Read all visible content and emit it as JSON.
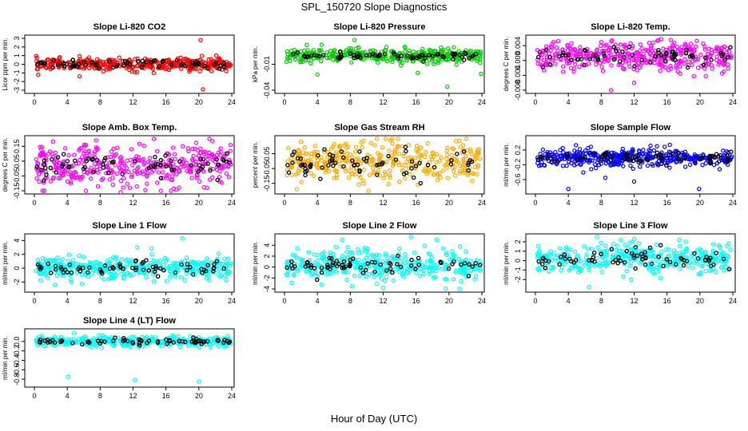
{
  "figure": {
    "title": "SPL_150720  Slope Diagnostics",
    "xlabel": "Hour of Day (UTC)"
  },
  "chart_data": [
    {
      "type": "scatter",
      "title": "Slope Li-820 CO2",
      "ylabel": "Licor ppm per min.",
      "xlim": [
        0,
        24
      ],
      "ylim": [
        -3,
        3
      ],
      "xticks": [
        0,
        4,
        8,
        12,
        16,
        20,
        24
      ],
      "yticks": [
        -3,
        -2,
        -1,
        0,
        1,
        2,
        3
      ],
      "yticklabels": [
        "-3",
        "-2",
        "-1",
        "0",
        "1",
        "2",
        "3"
      ],
      "color": "#ff0000",
      "secondary_color": "#000000",
      "baseline": 0,
      "spread": 0.35,
      "extremes": [
        [
          20.2,
          2.8
        ],
        [
          20.5,
          -2.9
        ],
        [
          5.5,
          -1.4
        ],
        [
          12.2,
          -0.9
        ]
      ]
    },
    {
      "type": "scatter",
      "title": "Slope Li-820 Pressure",
      "ylabel": "kPa per min.",
      "xlim": [
        0,
        24
      ],
      "ylim": [
        -0.04,
        0.02
      ],
      "xticks": [
        0,
        4,
        8,
        12,
        16,
        20,
        24
      ],
      "yticks": [
        -0.04,
        -0.01
      ],
      "yticklabels": [
        "-0.04",
        "-0.01"
      ],
      "color": "#00cc00",
      "secondary_color": "#000000",
      "baseline": 0.0,
      "spread": 0.004,
      "extremes": [
        [
          8.5,
          0.018
        ],
        [
          4.0,
          -0.022
        ],
        [
          16.2,
          -0.02
        ],
        [
          23.9,
          -0.021
        ],
        [
          19.8,
          -0.036
        ],
        [
          3.2,
          -0.009
        ]
      ]
    },
    {
      "type": "scatter",
      "title": "Slope Li-820 Temp.",
      "ylabel": "degrees C per min.",
      "xlim": [
        0,
        24
      ],
      "ylim": [
        -0.008,
        0.006
      ],
      "xticks": [
        0,
        4,
        8,
        12,
        16,
        20,
        24
      ],
      "yticks": [
        -0.008,
        -0.004,
        0.0,
        0.004
      ],
      "yticklabels": [
        "-0.008",
        "-0.004",
        "0.000",
        "0.004"
      ],
      "color": "#ff00ff",
      "secondary_color": "#000000",
      "baseline": 0.001,
      "spread": 0.002,
      "extremes": [
        [
          9.2,
          -0.008
        ],
        [
          8.0,
          0.005
        ],
        [
          12.0,
          -0.006
        ],
        [
          2.2,
          0.005
        ]
      ]
    },
    {
      "type": "scatter",
      "title": "Slope Amb. Box Temp.",
      "ylabel": "degrees C per min.",
      "xlim": [
        0,
        24
      ],
      "ylim": [
        -0.15,
        0.2
      ],
      "xticks": [
        0,
        4,
        8,
        12,
        16,
        20,
        24
      ],
      "yticks": [
        -0.15,
        -0.05,
        0.05,
        0.15
      ],
      "yticklabels": [
        "-0.15",
        "-0.05",
        "0.05",
        "0.15"
      ],
      "color": "#ff00ff",
      "secondary_color": "#000000",
      "baseline": 0.02,
      "spread": 0.07,
      "extremes": [
        [
          7.5,
          0.19
        ],
        [
          10.5,
          -0.16
        ],
        [
          21.0,
          -0.13
        ]
      ]
    },
    {
      "type": "scatter",
      "title": "Slope Gas Stream RH",
      "ylabel": "percent per min.",
      "xlim": [
        0,
        24
      ],
      "ylim": [
        -0.2,
        0.15
      ],
      "xticks": [
        0,
        4,
        8,
        12,
        16,
        20,
        24
      ],
      "yticks": [
        -0.15,
        -0.05,
        0.05
      ],
      "yticklabels": [
        "-0.15",
        "-0.05",
        "0.05"
      ],
      "color": "#ffaa00",
      "secondary_color": "#000000",
      "baseline": -0.01,
      "spread": 0.07,
      "extremes": [
        [
          2.0,
          0.13
        ],
        [
          1.5,
          -0.19
        ]
      ]
    },
    {
      "type": "scatter",
      "title": "Slope Sample Flow",
      "ylabel": "ml/min per min.",
      "xlim": [
        0,
        24
      ],
      "ylim": [
        -0.9,
        0.5
      ],
      "xticks": [
        0,
        4,
        8,
        12,
        16,
        20,
        24
      ],
      "yticks": [
        -0.6,
        -0.2,
        0.2
      ],
      "yticklabels": [
        "-0.6",
        "-0.2",
        "0.2"
      ],
      "color": "#0000ff",
      "secondary_color": "#000000",
      "baseline": 0.0,
      "spread": 0.12,
      "extremes": [
        [
          4.0,
          -0.85
        ],
        [
          12.0,
          -0.65
        ],
        [
          19.9,
          -0.85
        ],
        [
          8.5,
          -0.55
        ]
      ]
    },
    {
      "type": "scatter",
      "title": "Slope Line 1 Flow",
      "ylabel": "ml/min per min.",
      "xlim": [
        0,
        24
      ],
      "ylim": [
        -3,
        4.5
      ],
      "xticks": [
        0,
        4,
        8,
        12,
        16,
        20,
        24
      ],
      "yticks": [
        -2,
        0,
        2,
        4
      ],
      "yticklabels": [
        "-2",
        "0",
        "2",
        "4"
      ],
      "color": "#00ffff",
      "secondary_color": "#000000",
      "baseline": 0,
      "spread": 0.8,
      "extremes": [
        [
          18.0,
          4.3
        ],
        [
          12.5,
          3.0
        ],
        [
          2.5,
          -2.4
        ]
      ]
    },
    {
      "type": "scatter",
      "title": "Slope Line 2 Flow",
      "ylabel": "ml/min per min.",
      "xlim": [
        0,
        24
      ],
      "ylim": [
        -4,
        5.5
      ],
      "xticks": [
        0,
        4,
        8,
        12,
        16,
        20,
        24
      ],
      "yticks": [
        -4,
        -2,
        0,
        2,
        4
      ],
      "yticklabels": [
        "-4",
        "-2",
        "0",
        "2",
        "4"
      ],
      "color": "#00ffff",
      "secondary_color": "#000000",
      "baseline": 0.3,
      "spread": 1.4,
      "extremes": [
        [
          18.5,
          5.0
        ],
        [
          7.0,
          5.0
        ],
        [
          12.0,
          -3.8
        ],
        [
          8.2,
          -3.5
        ]
      ]
    },
    {
      "type": "scatter",
      "title": "Slope Line 3 Flow",
      "ylabel": "ml/min per min.",
      "xlim": [
        0,
        24
      ],
      "ylim": [
        -3,
        2.5
      ],
      "xticks": [
        0,
        4,
        8,
        12,
        16,
        20,
        24
      ],
      "yticks": [
        -2,
        -1,
        0,
        1,
        2
      ],
      "yticklabels": [
        "-2",
        "-1",
        "0",
        "1",
        "2"
      ],
      "color": "#00ffff",
      "secondary_color": "#000000",
      "baseline": 0.2,
      "spread": 0.8,
      "extremes": [
        [
          6.5,
          -2.8
        ],
        [
          12.0,
          2.3
        ],
        [
          17.5,
          2.2
        ]
      ]
    },
    {
      "type": "scatter",
      "title": "Slope Line 4 (LT) Flow",
      "ylabel": "ml/min per min.",
      "xlim": [
        0,
        24
      ],
      "ylim": [
        -0.9,
        0.2
      ],
      "xticks": [
        0,
        4,
        8,
        12,
        16,
        20,
        24
      ],
      "yticks": [
        -0.8,
        -0.6,
        -0.4,
        -0.2,
        0.0
      ],
      "yticklabels": [
        "-0.8",
        "-0.6",
        "-0.4",
        "-0.2",
        "0.0"
      ],
      "color": "#00ffff",
      "secondary_color": "#000000",
      "baseline": 0.0,
      "spread": 0.05,
      "extremes": [
        [
          4.1,
          -0.75
        ],
        [
          12.2,
          -0.82
        ],
        [
          20.0,
          -0.85
        ],
        [
          4.8,
          0.18
        ]
      ]
    }
  ]
}
